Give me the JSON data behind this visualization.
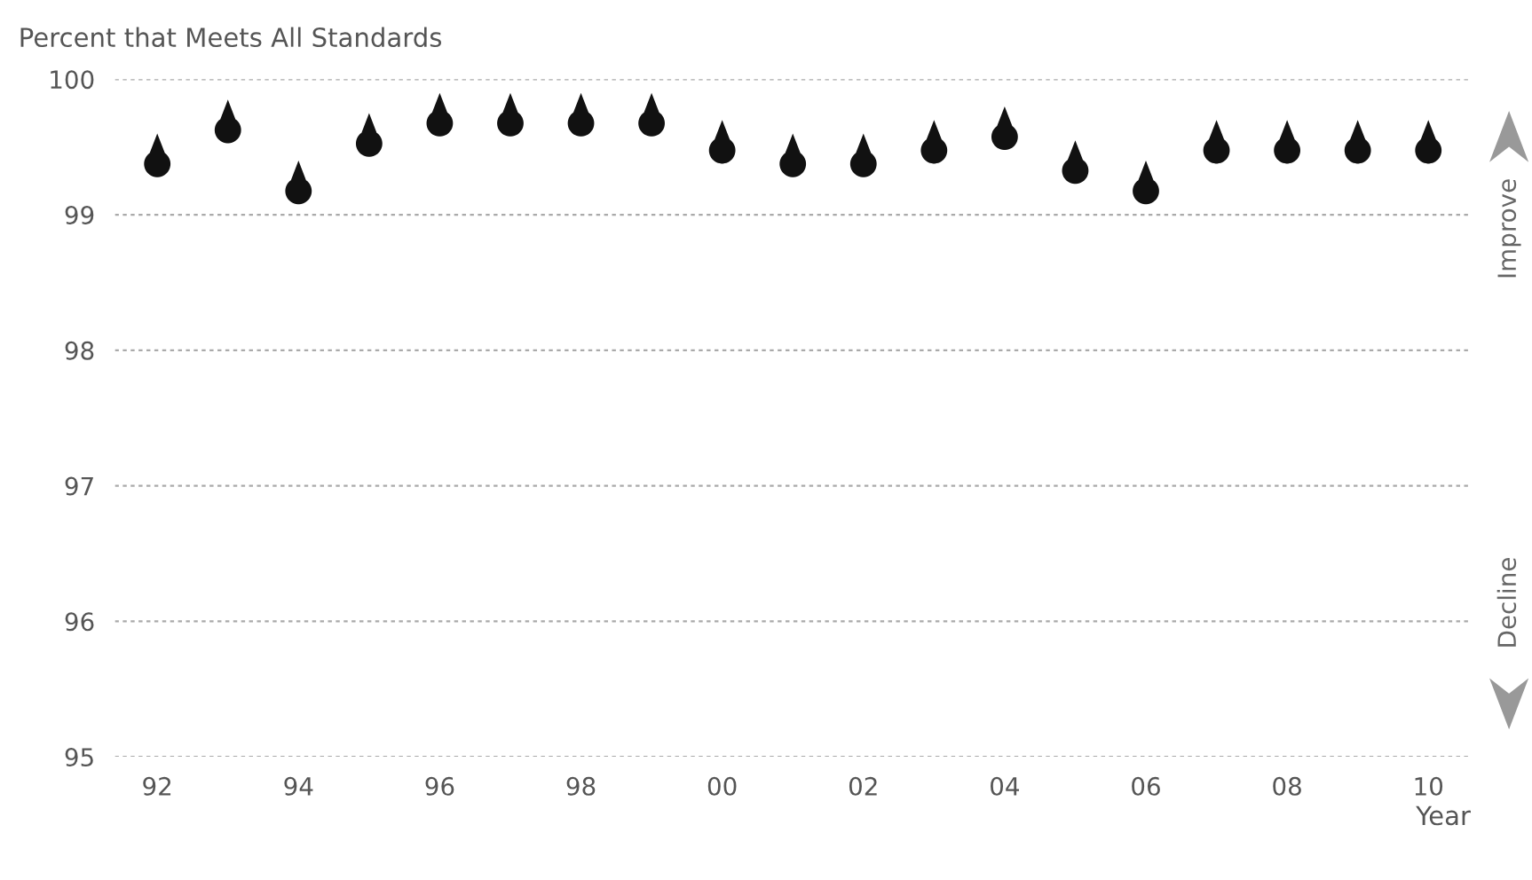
{
  "chart_data": {
    "type": "scatter",
    "title": "Percent that Meets All Standards",
    "xlabel": "Year",
    "x": [
      1992,
      1993,
      1994,
      1995,
      1996,
      1997,
      1998,
      1999,
      2000,
      2001,
      2002,
      2003,
      2004,
      2005,
      2006,
      2007,
      2008,
      2009,
      2010
    ],
    "series": [
      {
        "color": "#111111",
        "values": [
          99.4,
          99.65,
          99.2,
          99.55,
          99.7,
          99.7,
          99.7,
          99.7,
          99.5,
          99.4,
          99.4,
          99.5,
          99.6,
          99.35,
          99.2,
          99.5,
          99.5,
          99.5,
          99.5
        ]
      }
    ],
    "xlim": [
      1991.4,
      2010.6
    ],
    "ylim": [
      95,
      100
    ],
    "xticks": [
      {
        "value": 1992,
        "label": "92"
      },
      {
        "value": 1994,
        "label": "94"
      },
      {
        "value": 1996,
        "label": "96"
      },
      {
        "value": 1998,
        "label": "98"
      },
      {
        "value": 2000,
        "label": "00"
      },
      {
        "value": 2002,
        "label": "02"
      },
      {
        "value": 2004,
        "label": "04"
      },
      {
        "value": 2006,
        "label": "06"
      },
      {
        "value": 2008,
        "label": "08"
      },
      {
        "value": 2010,
        "label": "10"
      }
    ],
    "yticks": [
      95,
      96,
      97,
      98,
      99,
      100
    ],
    "grid": "y",
    "legend": false,
    "annotations": [
      "Improve",
      "Decline"
    ]
  }
}
